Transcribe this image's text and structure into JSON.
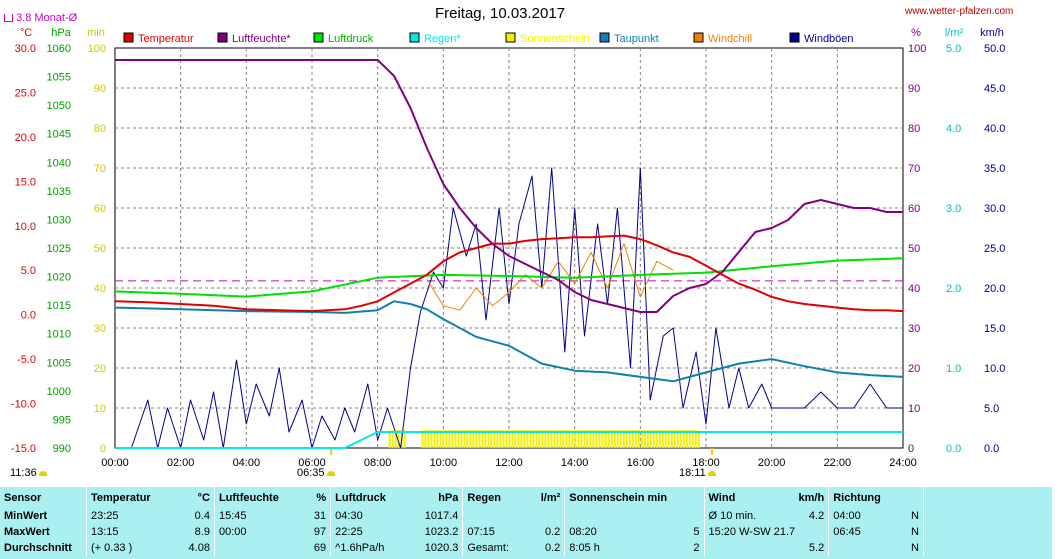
{
  "header": {
    "title": "Freitag, 10.03.2017",
    "site": "www.wetter-pfalzen.com",
    "monat_label": "3.8 Monat-Ø"
  },
  "sun": {
    "rise_left": "11:36",
    "rise": "06:35",
    "set": "18:11"
  },
  "colors": {
    "temperatur": "#e00000",
    "luftfeuchte": "#800080",
    "luftdruck": "#00e000",
    "regen": "#00e8e8",
    "sonnenschein": "#f0f000",
    "taupunkt": "#1080b0",
    "windchill": "#f08000",
    "windboeen": "#000090",
    "monat_avg": "#cc00cc"
  },
  "chart_data": {
    "type": "line",
    "title": "Freitag, 10.03.2017",
    "x_ticks": [
      "00:00",
      "02:00",
      "04:00",
      "06:00",
      "08:00",
      "10:00",
      "12:00",
      "14:00",
      "16:00",
      "18:00",
      "20:00",
      "22:00",
      "24:00"
    ],
    "xlim": [
      "00:00",
      "24:00"
    ],
    "axes": {
      "temp": {
        "unit": "°C",
        "ylim": [
          -15,
          30
        ],
        "ticks": [
          "30.0",
          "25.0",
          "20.0",
          "15.0",
          "10.0",
          "5.0",
          "0.0",
          "-5.0",
          "-10.0",
          "-15.0"
        ]
      },
      "pressure": {
        "unit": "hPa",
        "ylim": [
          990,
          1060
        ],
        "ticks": [
          "1060",
          "1055",
          "1050",
          "1045",
          "1040",
          "1035",
          "1030",
          "1025",
          "1020",
          "1015",
          "1010",
          "1005",
          "1000",
          "995",
          "990"
        ]
      },
      "minutes": {
        "unit": "min",
        "ylim": [
          0,
          100
        ],
        "ticks": [
          "100",
          "90",
          "80",
          "70",
          "60",
          "50",
          "40",
          "30",
          "20",
          "10",
          "0"
        ]
      },
      "humidity": {
        "unit": "%",
        "ylim": [
          0,
          100
        ],
        "ticks": [
          "100",
          "90",
          "80",
          "70",
          "60",
          "50",
          "40",
          "30",
          "20",
          "10",
          "0"
        ]
      },
      "rain": {
        "unit": "l/m²",
        "ylim": [
          0,
          5
        ],
        "ticks": [
          "5.0",
          "4.0",
          "3.0",
          "2.0",
          "1.0",
          "0.0"
        ]
      },
      "wind": {
        "unit": "km/h",
        "ylim": [
          0,
          50
        ],
        "ticks": [
          "50.0",
          "45.0",
          "40.0",
          "35.0",
          "30.0",
          "25.0",
          "20.0",
          "15.0",
          "10.0",
          "5.0",
          "0.0"
        ]
      }
    },
    "legend": [
      "Temperatur",
      "Luftfeuchte*",
      "Luftdruck",
      "Regen*",
      "Sonnenschein",
      "Taupunkt",
      "Windchill",
      "Windböen"
    ],
    "monat_avg_temp": 3.8,
    "series": [
      {
        "name": "Temperatur",
        "axis": "temp",
        "x": [
          0,
          1,
          2,
          3,
          4,
          5,
          6,
          7,
          7.5,
          8,
          8.5,
          9,
          9.5,
          10,
          10.5,
          11,
          11.5,
          12,
          12.5,
          13,
          13.5,
          14,
          14.5,
          15,
          15.5,
          16,
          16.5,
          17,
          17.5,
          18,
          18.5,
          19,
          19.5,
          20,
          20.5,
          21,
          21.5,
          22,
          22.5,
          23,
          23.5,
          24
        ],
        "y": [
          1.5,
          1.4,
          1.2,
          1.0,
          0.6,
          0.5,
          0.4,
          0.6,
          1.0,
          1.5,
          2.5,
          3.5,
          4.5,
          6.0,
          7.0,
          7.5,
          8.0,
          8.0,
          8.3,
          8.5,
          8.6,
          8.7,
          8.7,
          8.8,
          8.9,
          8.5,
          7.8,
          7.0,
          6.5,
          5.5,
          4.5,
          3.5,
          2.8,
          2.0,
          1.5,
          1.2,
          1.0,
          0.8,
          0.6,
          0.5,
          0.5,
          0.4
        ]
      },
      {
        "name": "Luftfeuchte*",
        "axis": "humidity",
        "x": [
          0,
          1,
          2,
          3,
          4,
          5,
          6,
          7,
          7.5,
          8,
          8.5,
          9,
          9.5,
          10,
          10.5,
          11,
          11.5,
          12,
          12.5,
          13,
          13.5,
          14,
          14.5,
          15,
          15.5,
          16,
          16.5,
          17,
          17.5,
          18,
          18.5,
          19,
          19.5,
          20,
          20.5,
          21,
          21.5,
          22,
          22.5,
          23,
          23.5,
          24
        ],
        "y": [
          97,
          97,
          97,
          97,
          97,
          97,
          97,
          97,
          97,
          97,
          93,
          85,
          75,
          66,
          60,
          55,
          51,
          48,
          46,
          44,
          42,
          39,
          37,
          36,
          35,
          34,
          34,
          38,
          40,
          41,
          44,
          49,
          54,
          55,
          57,
          61,
          62,
          61,
          60,
          60,
          59,
          59
        ]
      },
      {
        "name": "Luftdruck",
        "axis": "pressure",
        "x": [
          0,
          2,
          4,
          6,
          8,
          10,
          12,
          14,
          16,
          18,
          20,
          22,
          24
        ],
        "y": [
          1017.4,
          1017.0,
          1016.5,
          1017.4,
          1019.8,
          1020.3,
          1020.1,
          1019.8,
          1020.3,
          1020.7,
          1021.8,
          1022.8,
          1023.2
        ]
      },
      {
        "name": "Regen*",
        "axis": "rain",
        "x": [
          0,
          7.0,
          7.5,
          8.0,
          9.0,
          24
        ],
        "y": [
          0,
          0,
          0.1,
          0.2,
          0.2,
          0.2
        ]
      },
      {
        "name": "Taupunkt",
        "axis": "temp",
        "x": [
          0,
          2,
          4,
          6,
          7,
          8,
          8.5,
          9,
          9.5,
          10,
          10.5,
          11,
          11.5,
          12,
          13,
          14,
          15,
          16,
          17,
          18,
          19,
          20,
          21,
          22,
          23,
          24
        ],
        "y": [
          0.8,
          0.6,
          0.4,
          0.3,
          0.2,
          0.5,
          1.5,
          1.2,
          0.6,
          -0.5,
          -1.5,
          -2.5,
          -3.0,
          -3.5,
          -5.5,
          -6.3,
          -6.5,
          -7.0,
          -7.5,
          -6.5,
          -5.5,
          -5.0,
          -5.8,
          -6.5,
          -6.8,
          -7.0
        ]
      },
      {
        "name": "Windchill",
        "axis": "temp",
        "x": [
          9.5,
          10,
          10.5,
          11,
          11.5,
          12,
          12.5,
          13,
          13.5,
          14,
          14.5,
          15,
          15.5,
          16,
          16.5,
          17
        ],
        "y": [
          4.0,
          1.0,
          0.5,
          3.0,
          1.0,
          2.5,
          4.5,
          3.0,
          6.0,
          3.5,
          7.0,
          3.0,
          8.0,
          2.0,
          6.0,
          5.0
        ]
      },
      {
        "name": "Windböen",
        "axis": "wind",
        "x": [
          0,
          0.5,
          1,
          1.3,
          1.6,
          2,
          2.3,
          2.7,
          3,
          3.3,
          3.7,
          4,
          4.3,
          4.7,
          5,
          5.3,
          5.7,
          6,
          6.3,
          6.7,
          7,
          7.3,
          7.7,
          8,
          8.3,
          8.7,
          9,
          9.3,
          9.7,
          10,
          10.3,
          10.7,
          11,
          11.3,
          11.7,
          12,
          12.3,
          12.7,
          13,
          13.3,
          13.7,
          14,
          14.3,
          14.7,
          15,
          15.3,
          15.7,
          16,
          16.3,
          16.7,
          17,
          17.3,
          17.7,
          18,
          18.3,
          18.7,
          19,
          19.3,
          19.7,
          20,
          20.5,
          21,
          21.5,
          22,
          22.5,
          23,
          23.5,
          24
        ],
        "y": [
          0,
          0,
          6,
          0,
          5,
          0,
          6,
          1,
          7,
          0,
          11,
          3,
          8,
          4,
          10,
          2,
          6,
          0,
          4,
          1,
          5,
          2,
          8,
          1,
          5,
          0,
          10,
          17,
          22,
          20,
          30,
          24,
          28,
          16,
          30,
          18,
          28,
          34,
          20,
          35,
          12,
          30,
          14,
          28,
          18,
          30,
          10,
          35,
          6,
          14,
          15,
          5,
          12,
          3,
          15,
          5,
          10,
          5,
          8,
          5,
          5,
          5,
          7,
          5,
          5,
          8,
          5,
          5
        ]
      }
    ],
    "sonnenschein": {
      "name": "Sonnenschein",
      "intervals": [
        [
          "08:20",
          "08:50"
        ],
        [
          "09:20",
          "14:55"
        ],
        [
          "14:55",
          "17:45"
        ]
      ]
    }
  },
  "stats": {
    "headers": {
      "sensor": "Sensor",
      "temp": "Temperatur",
      "temp_unit": "°C",
      "hum": "Luftfeuchte",
      "hum_unit": "%",
      "press": "Luftdruck",
      "press_unit": "hPa",
      "rain": "Regen",
      "rain_unit": "l/m²",
      "sun": "Sonnenschein min",
      "wind": "Wind",
      "wind_unit": "km/h",
      "dir": "Richtung"
    },
    "rows": [
      {
        "label": "MinWert",
        "t_time": "23:25",
        "t_val": "0.4",
        "h_time": "15:45",
        "h_val": "31",
        "p_time": "04:30",
        "p_val": "1017.4",
        "r_time": "",
        "r_val": "",
        "s_time": "",
        "s_val": "",
        "w_time": "Ø 10 min.",
        "w_val": "4.2",
        "d_time": "04:00",
        "d_val": "N"
      },
      {
        "label": "MaxWert",
        "t_time": "13:15",
        "t_val": "8.9",
        "h_time": "00:00",
        "h_val": "97",
        "p_time": "22:25",
        "p_val": "1023.2",
        "r_time": "07:15",
        "r_val": "0.2",
        "s_time": "08:20",
        "s_val": "5",
        "w_time": "15:20   W-SW 21.7",
        "w_val": "",
        "d_time": "06:45",
        "d_val": "N"
      },
      {
        "label": "Durchschnitt",
        "t_time": "(+ 0.33 )",
        "t_val": "4.08",
        "h_time": "",
        "h_val": "69",
        "p_time": "^1.6hPa/h",
        "p_val": "1020.3",
        "r_time": "Gesamt:",
        "r_val": "0.2",
        "s_time": "8:05 h",
        "s_val": "2",
        "w_time": "",
        "w_val": "5.2",
        "d_time": "",
        "d_val": "N"
      }
    ]
  }
}
